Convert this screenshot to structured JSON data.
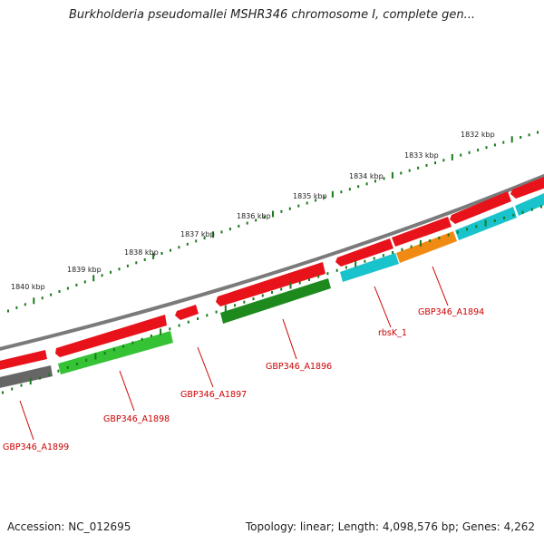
{
  "header": {
    "title": "Burkholderia pseudomallei MSHR346 chromosome I, complete gen..."
  },
  "footer": {
    "accession": "Accession: NC_012695",
    "summary": "Topology: linear; Length: 4,098,576 bp; Genes: 4,262"
  },
  "ruler": {
    "labels": [
      "1840 kbp",
      "1839 kbp",
      "1838 kbp",
      "1837 kbp",
      "1836 kbp",
      "1835 kbp",
      "1834 kbp",
      "1833 kbp",
      "1832 kbp"
    ]
  },
  "gene_labels": [
    "GBP346_A1899",
    "GBP346_A1898",
    "GBP346_A1897",
    "GBP346_A1896",
    "rbsK_1",
    "GBP346_A1894"
  ],
  "colors": {
    "red": "#e8121a",
    "green": "#35c235",
    "dark_green": "#1e8a1e",
    "cyan": "#18c3cc",
    "orange": "#f08a12",
    "gray": "#666666",
    "backbone": "#7a7a7a",
    "tick": "#1a7a1a",
    "label": "#cc0000"
  }
}
